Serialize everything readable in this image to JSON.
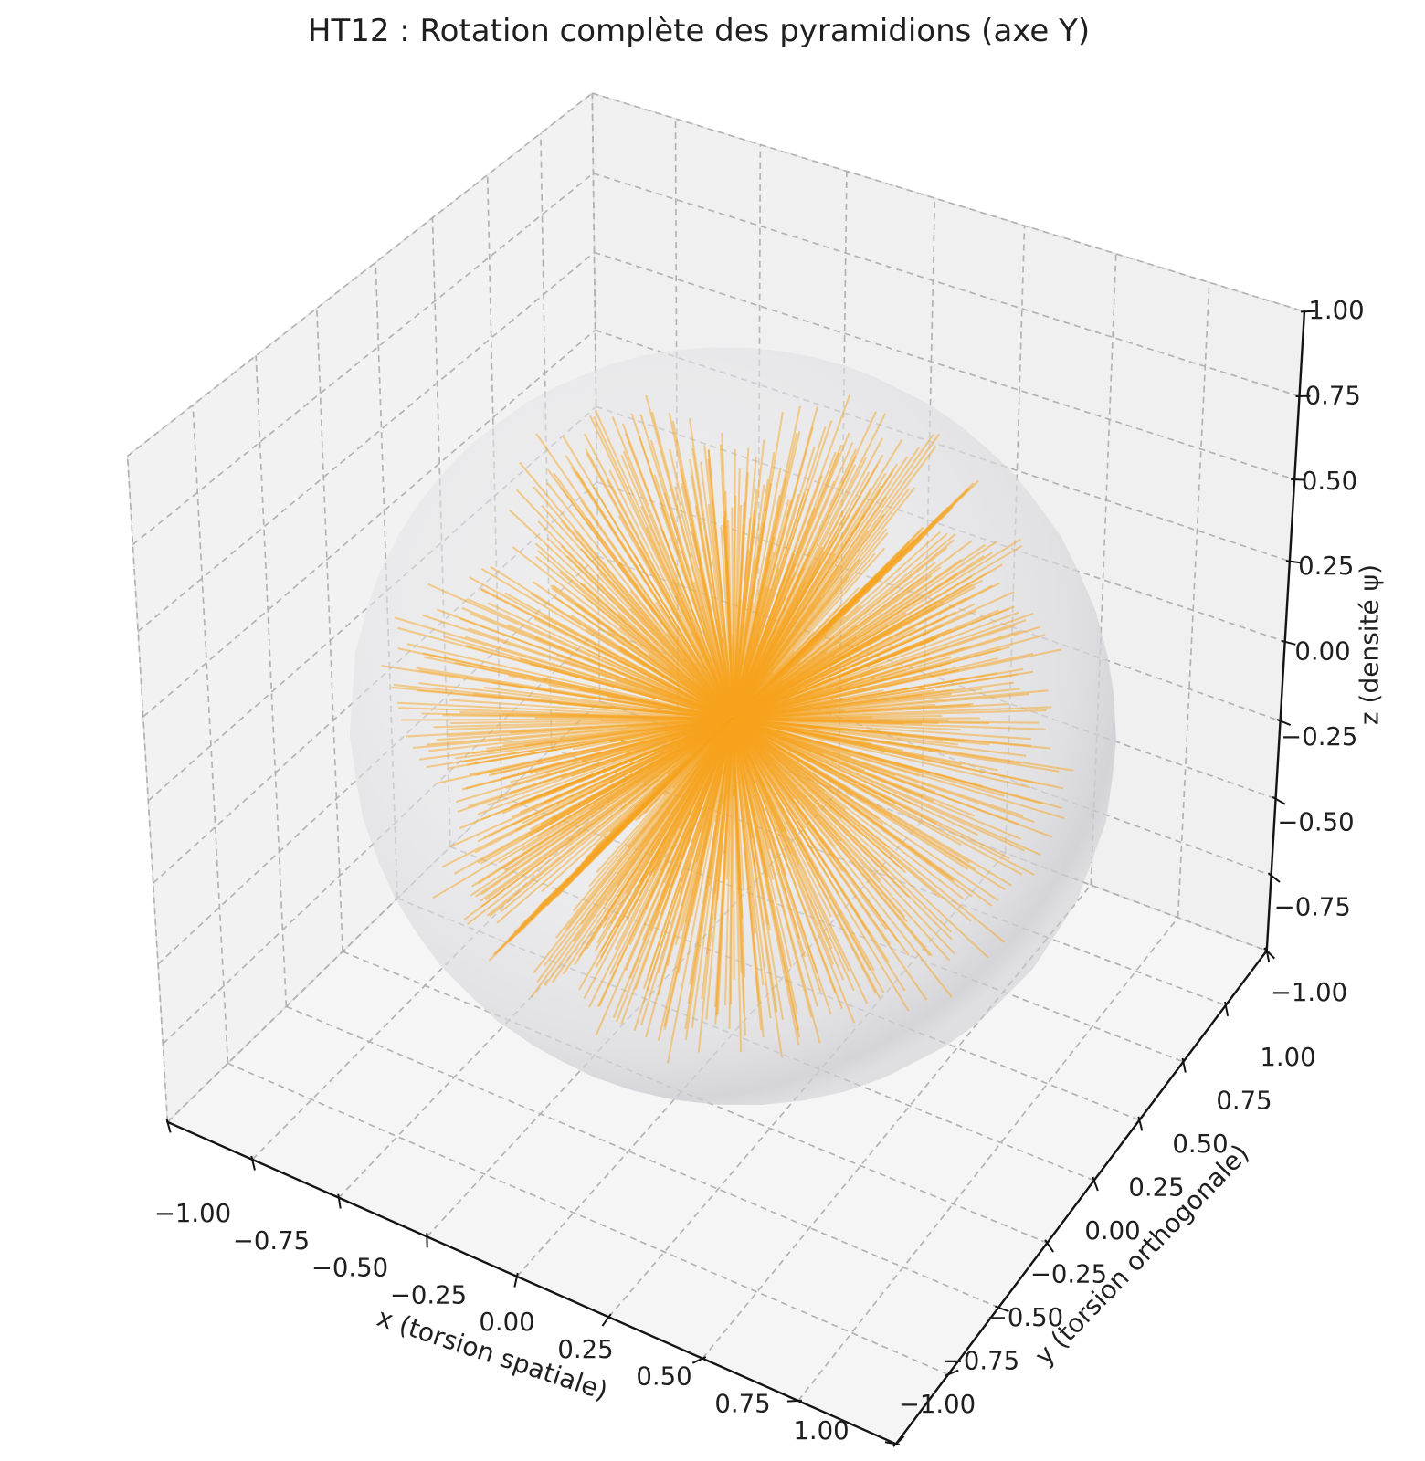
{
  "title": "HT12 : Rotation complète des pyramidions (axe Y)",
  "axes": {
    "x": {
      "label": "x (torsion spatiale)",
      "tick_values": [
        -1,
        -0.75,
        -0.5,
        -0.25,
        0,
        0.25,
        0.5,
        0.75,
        1
      ],
      "tick_labels": [
        "−1.00",
        "−0.75",
        "−0.50",
        "−0.25",
        "0.00",
        "0.25",
        "0.50",
        "0.75",
        "1.00"
      ]
    },
    "y": {
      "label": "y (torsion orthogonale)",
      "tick_values": [
        -1,
        -0.75,
        -0.5,
        -0.25,
        0,
        0.25,
        0.5,
        0.75,
        1
      ],
      "tick_labels": [
        "−1.00",
        "−0.75",
        "−0.50",
        "−0.25",
        "0.00",
        "0.25",
        "0.50",
        "0.75",
        "1.00"
      ]
    },
    "z": {
      "label": "z (densité ψ)",
      "tick_values": [
        -1,
        -0.75,
        -0.5,
        -0.25,
        0,
        0.25,
        0.5,
        0.75,
        1
      ],
      "tick_labels": [
        "−1.00",
        "−0.75",
        "−0.50",
        "−0.25",
        "0.00",
        "0.25",
        "0.50",
        "0.75",
        "1.00"
      ]
    }
  },
  "colors": {
    "needle": "#f7a41d",
    "sphere_rim": "#cdcdd2",
    "sphere_core": "#ececee",
    "pane_floor": "#f5f5f5",
    "pane_left": "#f2f2f2",
    "pane_right": "#f0f0f0",
    "pane_edge": "#e2e2e2",
    "grid": "#b0b0b0",
    "spine": "#141414",
    "text": "#1f1f1f"
  },
  "chart_data": {
    "type": "line",
    "projection": "3d",
    "title": "HT12 : Rotation complète des pyramidions (axe Y)",
    "xlabel": "x (torsion spatiale)",
    "ylabel": "y (torsion orthogonale)",
    "zlabel": "z (densité ψ)",
    "xlim": [
      -1,
      1
    ],
    "ylim": [
      -1,
      1
    ],
    "zlim": [
      -1,
      1
    ],
    "tick_step": 0.25,
    "grid": true,
    "grid_style": "dashed",
    "legend": false,
    "view": {
      "elev": 30,
      "azim": -60,
      "proj_type": "persp"
    },
    "elements": {
      "sphere": {
        "center": [
          0,
          0,
          0
        ],
        "radius": 0.92,
        "color": "#c9c9ce",
        "alpha": 0.55,
        "description": "translucent gray sphere enclosing the needle bundle"
      },
      "needles": {
        "description": "orange line segments radiating from the origin: pyramidion direction vectors swept through a full 360° rotation about the Y axis, forming planar fans with wedge gaps",
        "rotation_axis": "y",
        "fan_count": 28,
        "needles_per_fan": 32,
        "polar_range_deg": [
          12,
          168
        ],
        "length_range": [
          0.48,
          0.89
        ],
        "color": "#f7a41d",
        "alpha": 0.48,
        "linewidth": 2.1
      }
    }
  }
}
